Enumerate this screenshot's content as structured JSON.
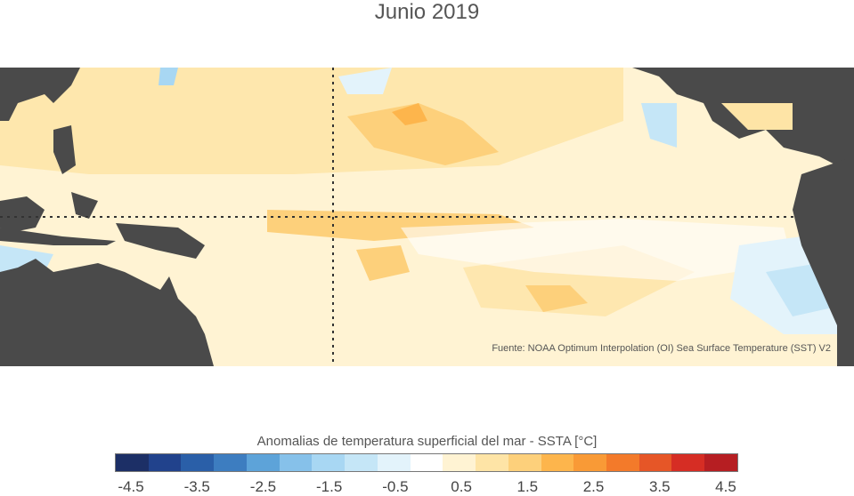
{
  "title": "Junio 2019",
  "source": "Fuente: NOAA Optimum Interpolation (OI) Sea Surface Temperature (SST) V2",
  "colorbar": {
    "title": "Anomalias de temperatura superficial del mar - SSTA  [°C]",
    "colors": [
      "#1c2f66",
      "#21428c",
      "#2a5fa8",
      "#3d7dc0",
      "#5da3d9",
      "#86c1ea",
      "#a8d7f3",
      "#c5e6f7",
      "#e3f3fb",
      "#ffffff",
      "#fff3d3",
      "#fee4a6",
      "#fdd07b",
      "#fdb54c",
      "#f99a36",
      "#f37a2a",
      "#e65627",
      "#d62d24",
      "#b61e22"
    ],
    "tick_labels": [
      "-4.5",
      "-3.5",
      "-2.5",
      "-1.5",
      "-0.5",
      "0.5",
      "1.5",
      "2.5",
      "3.5",
      "4.5"
    ]
  }
}
